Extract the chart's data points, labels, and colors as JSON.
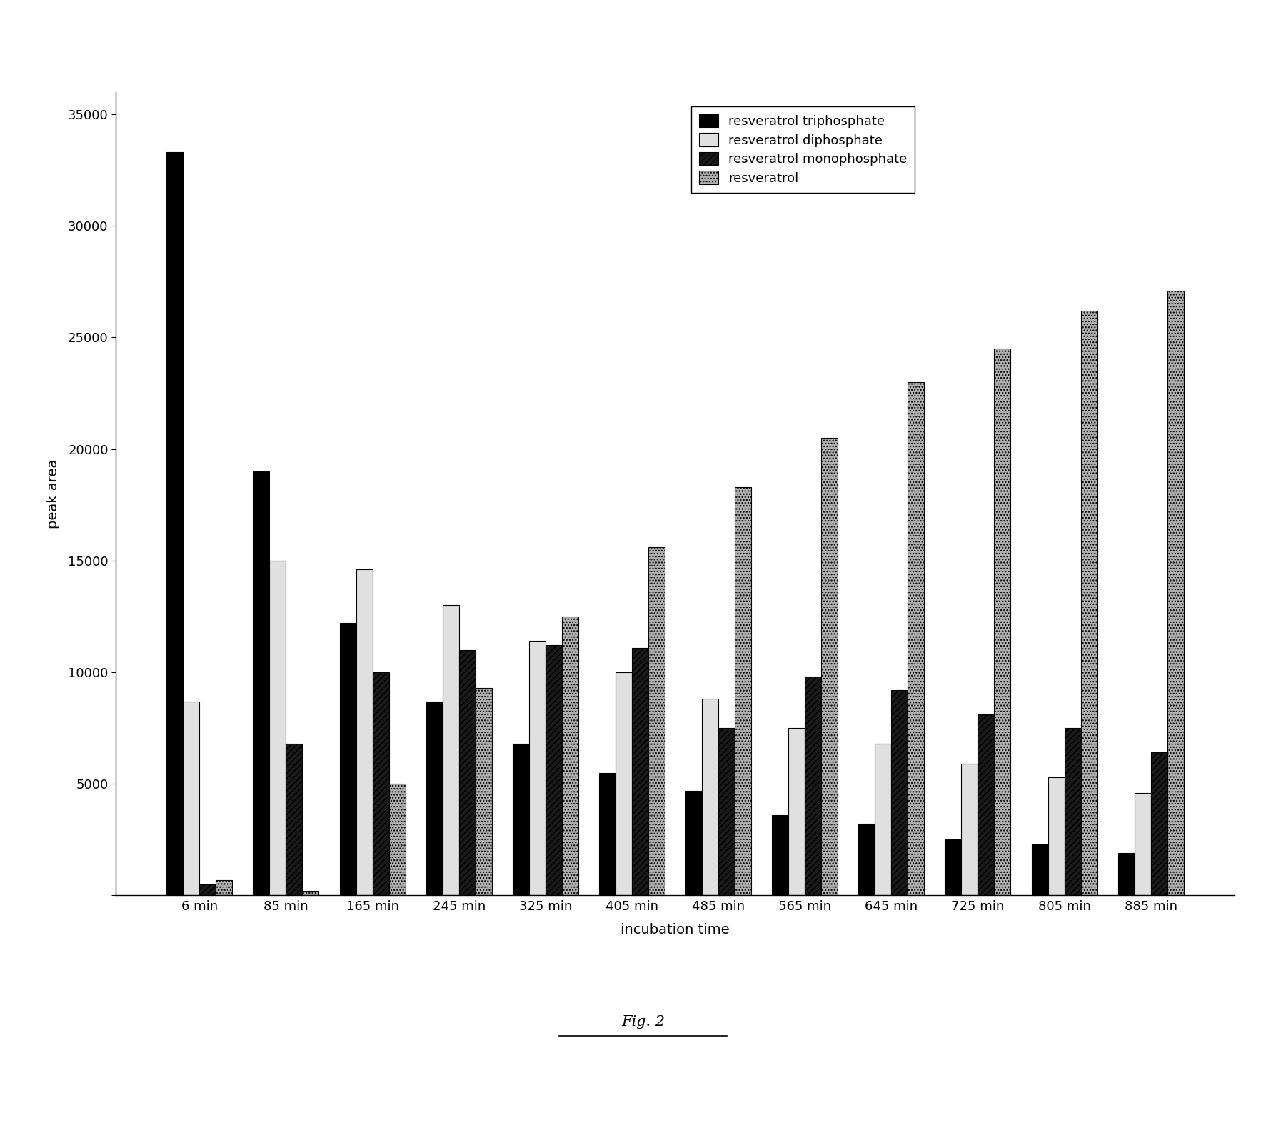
{
  "categories": [
    "6 min",
    "85 min",
    "165 min",
    "245 min",
    "325 min",
    "405 min",
    "485 min",
    "565 min",
    "645 min",
    "725 min",
    "805 min",
    "885 min"
  ],
  "series": {
    "resveratrol triphosphate": [
      33300,
      19000,
      12200,
      8700,
      6800,
      5500,
      4700,
      3600,
      3200,
      2500,
      2300,
      1900
    ],
    "resveratrol diphosphate": [
      8700,
      15000,
      14600,
      13000,
      11400,
      10000,
      8800,
      7500,
      6800,
      5900,
      5300,
      4600
    ],
    "resveratrol monophosphate": [
      500,
      6800,
      10000,
      11000,
      11200,
      11100,
      7500,
      9800,
      9200,
      8100,
      7500,
      6400
    ],
    "resveratrol": [
      700,
      200,
      5000,
      9300,
      12500,
      15600,
      18300,
      20500,
      23000,
      24500,
      26200,
      27100
    ]
  },
  "bar_colors": {
    "resveratrol triphosphate": "#000000",
    "resveratrol diphosphate": "#e0e0e0",
    "resveratrol monophosphate": "#1a1a1a",
    "resveratrol": "#b0b0b0"
  },
  "bar_hatches": {
    "resveratrol triphosphate": "",
    "resveratrol diphosphate": "",
    "resveratrol monophosphate": "////",
    "resveratrol": "...."
  },
  "ylabel": "peak area",
  "xlabel": "incubation time",
  "ylim": [
    0,
    36000
  ],
  "yticks": [
    0,
    5000,
    10000,
    15000,
    20000,
    25000,
    30000,
    35000
  ],
  "figcaption": "Fig. 2",
  "legend_order": [
    "resveratrol triphosphate",
    "resveratrol diphosphate",
    "resveratrol monophosphate",
    "resveratrol"
  ],
  "bar_width": 0.19,
  "legend_facecolors": {
    "resveratrol triphosphate": "#000000",
    "resveratrol diphosphate": "#e0e0e0",
    "resveratrol monophosphate": "#1a1a1a",
    "resveratrol": "#b0b0b0"
  }
}
